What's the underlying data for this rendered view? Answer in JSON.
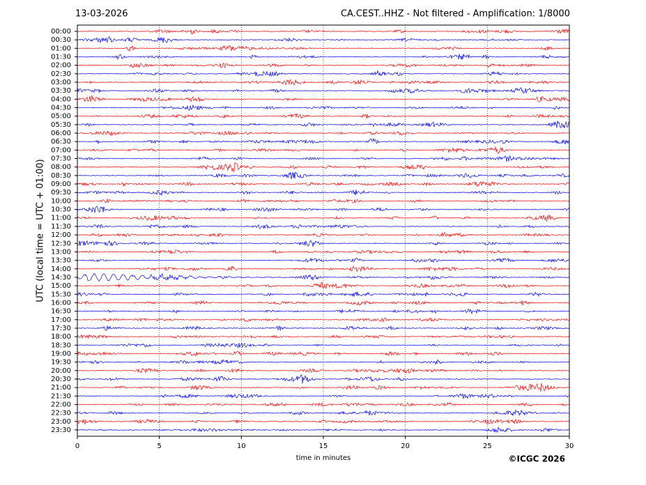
{
  "chart_data": {
    "type": "helicorder",
    "date": "13-03-2026",
    "title": "CA.CEST..HHZ - Not filtered - Amplification: 1/8000",
    "y_label": "UTC (local time = UTC + 01:00)",
    "x_label": "time in minutes",
    "credit": "©ICGC 2026",
    "categories": [
      "00:00",
      "00:30",
      "01:00",
      "01:30",
      "02:00",
      "02:30",
      "03:00",
      "03:30",
      "04:00",
      "04:30",
      "05:00",
      "05:30",
      "06:00",
      "06:30",
      "07:00",
      "07:30",
      "08:00",
      "08:30",
      "09:00",
      "09:30",
      "10:00",
      "10:30",
      "11:00",
      "11:30",
      "12:00",
      "12:30",
      "13:00",
      "13:30",
      "14:00",
      "14:30",
      "15:00",
      "15:30",
      "16:00",
      "16:30",
      "17:00",
      "17:30",
      "18:00",
      "18:30",
      "19:00",
      "19:30",
      "20:00",
      "20:30",
      "21:00",
      "21:30",
      "22:00",
      "22:30",
      "23:00",
      "23:30"
    ],
    "colors": [
      "#ff0000",
      "#0000ff"
    ],
    "xlim": [
      0,
      30
    ],
    "xticks": [
      0,
      5,
      10,
      15,
      20,
      25,
      30
    ],
    "grid": true
  }
}
